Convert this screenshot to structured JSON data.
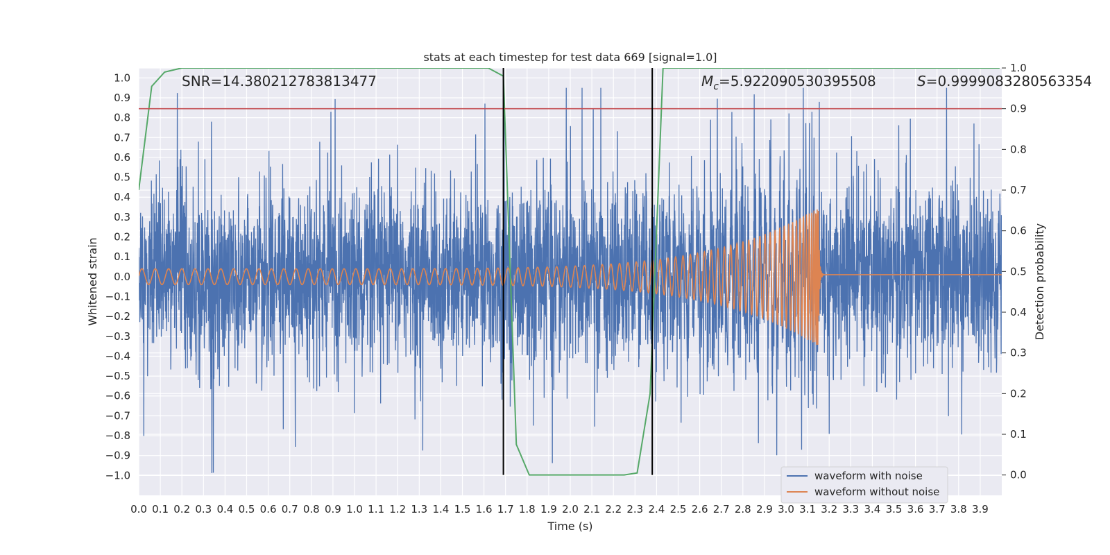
{
  "chart_data": {
    "type": "line",
    "title": "stats at each timestep for test data 669 [signal=1.0]",
    "xlabel": "Time (s)",
    "ylabel": "Whitened strain",
    "ylabel_right": "Detection probability",
    "xlim": [
      0.0,
      4.0
    ],
    "ylim": [
      -1.1,
      1.05
    ],
    "ylim_right": [
      -0.05,
      1.0
    ],
    "xticks": [
      "0.0",
      "0.1",
      "0.2",
      "0.3",
      "0.4",
      "0.5",
      "0.6",
      "0.7",
      "0.8",
      "0.9",
      "1.0",
      "1.1",
      "1.2",
      "1.3",
      "1.4",
      "1.5",
      "1.6",
      "1.7",
      "1.8",
      "1.9",
      "2.0",
      "2.1",
      "2.2",
      "2.3",
      "2.4",
      "2.5",
      "2.6",
      "2.7",
      "2.8",
      "2.9",
      "3.0",
      "3.1",
      "3.2",
      "3.3",
      "3.4",
      "3.5",
      "3.6",
      "3.7",
      "3.8",
      "3.9"
    ],
    "yticks": [
      "−1.0",
      "−0.9",
      "−0.8",
      "−0.7",
      "−0.6",
      "−0.5",
      "−0.4",
      "−0.3",
      "−0.2",
      "−0.1",
      "0.0",
      "0.1",
      "0.2",
      "0.3",
      "0.4",
      "0.5",
      "0.6",
      "0.7",
      "0.8",
      "0.9",
      "1.0"
    ],
    "yticks_right": [
      "0.0",
      "0.1",
      "0.2",
      "0.3",
      "0.4",
      "0.5",
      "0.6",
      "0.7",
      "0.8",
      "0.9",
      "1.0"
    ],
    "annotations": {
      "snr": "SNR=14.380212783813477",
      "mc_symbol": "M",
      "mc_sub": "c",
      "mc_value": "=5.922090530395508",
      "s_symbol": "S",
      "s_value": "=0.9999083280563354"
    },
    "threshold": 0.9,
    "vlines": [
      1.69,
      2.38
    ],
    "series": [
      {
        "name": "waveform with noise",
        "color": "#4c72b0",
        "generated": true,
        "duration": 4.0,
        "noise_std": 0.22,
        "peak_max": 0.95,
        "peak_min": -1.0
      },
      {
        "name": "waveform without noise",
        "color": "#dd8452",
        "chirp_start_amp": 0.04,
        "chirp_merger_amp": 0.35,
        "merger_time": 3.15,
        "post_merger_offset": 0.01
      },
      {
        "name": "detection probability",
        "color": "#55a868",
        "axis": "right",
        "x": [
          0.0,
          0.06,
          0.12,
          0.2,
          0.3,
          0.6,
          1.0,
          1.4,
          1.62,
          1.69,
          1.75,
          1.81,
          1.9,
          2.0,
          2.1,
          2.2,
          2.25,
          2.31,
          2.37,
          2.43,
          2.5,
          2.8,
          3.2,
          3.6,
          3.99
        ],
        "y": [
          0.7,
          0.955,
          0.99,
          1.0,
          1.0,
          1.0,
          1.0,
          1.0,
          1.0,
          0.98,
          0.075,
          0.0,
          0.0,
          0.0,
          0.0,
          0.0,
          0.0,
          0.005,
          0.2,
          1.0,
          1.0,
          1.0,
          1.0,
          1.0,
          1.0
        ]
      }
    ],
    "legend": {
      "position": "lower-right",
      "entries": [
        "waveform with noise",
        "waveform without noise"
      ]
    },
    "colors": {
      "background": "#eaeaf2",
      "grid": "#ffffff",
      "threshold": "#c44e52",
      "vline": "#000000"
    }
  }
}
